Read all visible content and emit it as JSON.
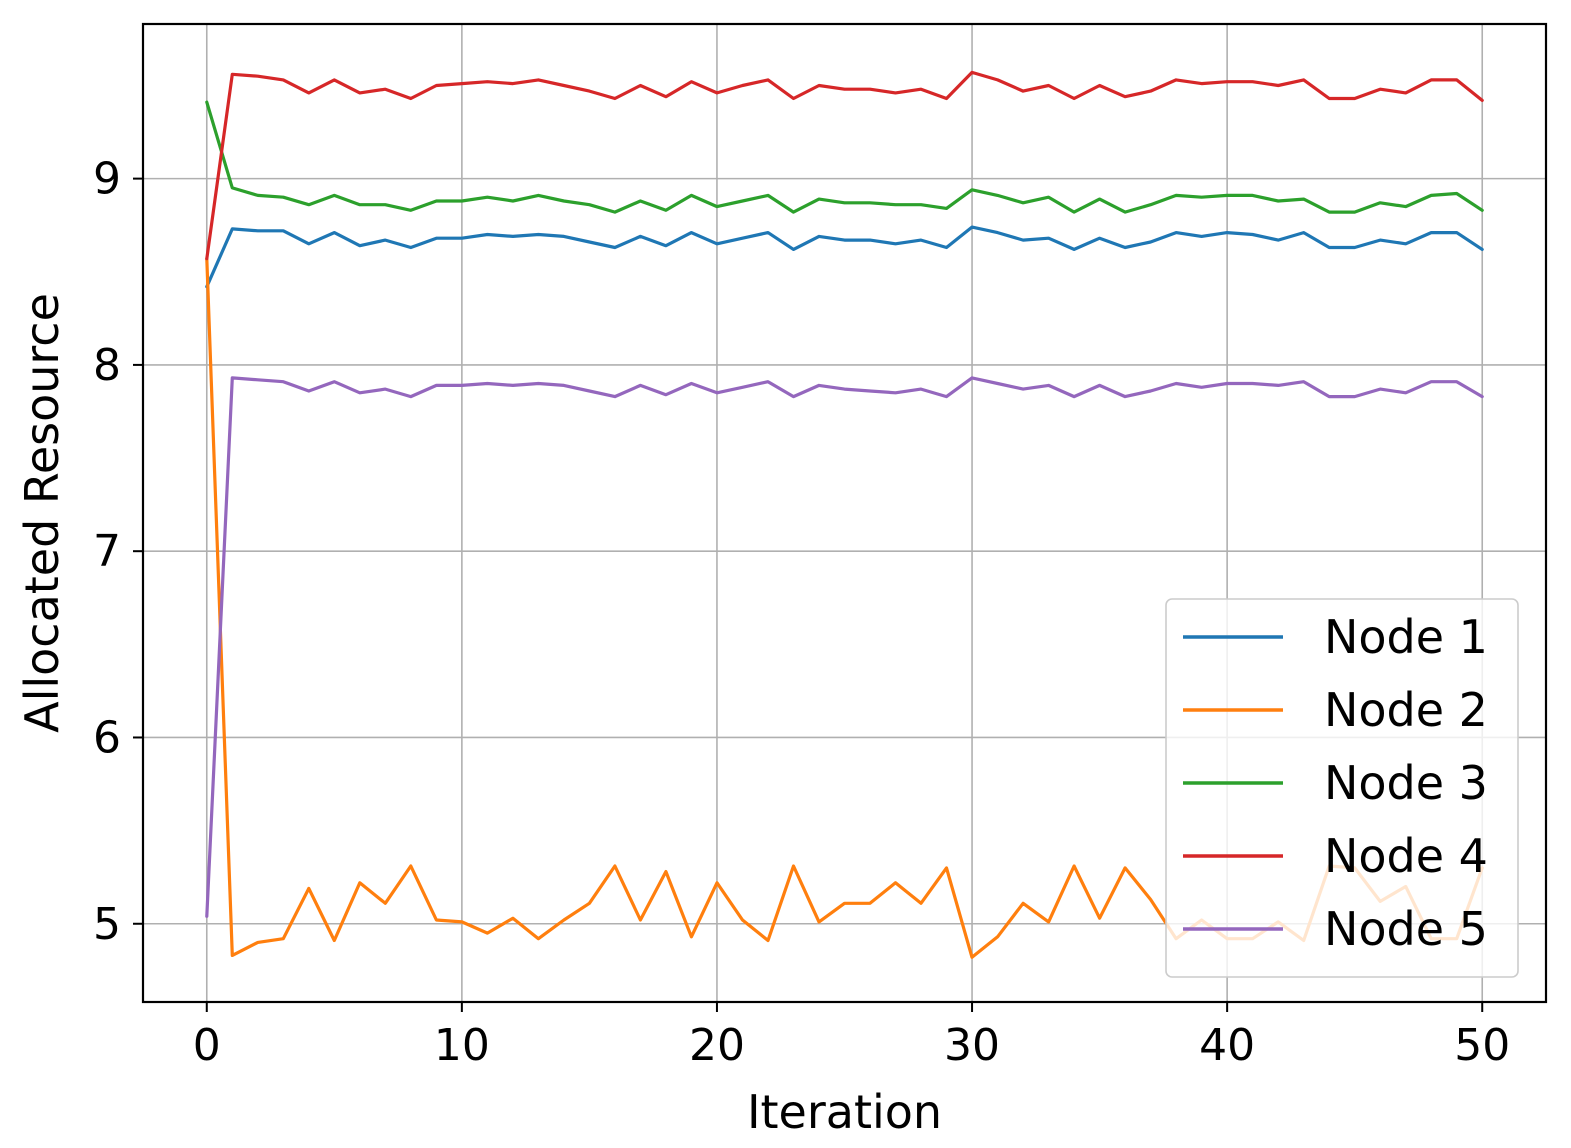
{
  "chart_data": {
    "type": "line",
    "title": "",
    "xlabel": "Iteration",
    "ylabel": "Allocated Resource",
    "xlim": [
      -2.5,
      52.5
    ],
    "ylim": [
      4.58,
      9.83
    ],
    "xticks": [
      0,
      10,
      20,
      30,
      40,
      50
    ],
    "yticks": [
      5,
      6,
      7,
      8,
      9
    ],
    "grid": true,
    "legend_position": "lower-right",
    "x": [
      0,
      1,
      2,
      3,
      4,
      5,
      6,
      7,
      8,
      9,
      10,
      11,
      12,
      13,
      14,
      15,
      16,
      17,
      18,
      19,
      20,
      21,
      22,
      23,
      24,
      25,
      26,
      27,
      28,
      29,
      30,
      31,
      32,
      33,
      34,
      35,
      36,
      37,
      38,
      39,
      40,
      41,
      42,
      43,
      44,
      45,
      46,
      47,
      48,
      49,
      50
    ],
    "series": [
      {
        "name": "Node 1",
        "color": "#1f77b4",
        "values": [
          8.42,
          8.73,
          8.72,
          8.72,
          8.65,
          8.71,
          8.64,
          8.67,
          8.63,
          8.68,
          8.68,
          8.7,
          8.69,
          8.7,
          8.69,
          8.66,
          8.63,
          8.69,
          8.64,
          8.71,
          8.65,
          8.68,
          8.71,
          8.62,
          8.69,
          8.67,
          8.67,
          8.65,
          8.67,
          8.63,
          8.74,
          8.71,
          8.67,
          8.68,
          8.62,
          8.68,
          8.63,
          8.66,
          8.71,
          8.69,
          8.71,
          8.7,
          8.67,
          8.71,
          8.63,
          8.63,
          8.67,
          8.65,
          8.71,
          8.71,
          8.62
        ]
      },
      {
        "name": "Node 2",
        "color": "#ff7f0e",
        "values": [
          8.57,
          4.83,
          4.9,
          4.92,
          5.19,
          4.91,
          5.22,
          5.11,
          5.31,
          5.02,
          5.01,
          4.95,
          5.03,
          4.92,
          5.02,
          5.11,
          5.31,
          5.02,
          5.28,
          4.93,
          5.22,
          5.02,
          4.91,
          5.31,
          5.01,
          5.11,
          5.11,
          5.22,
          5.11,
          5.3,
          4.82,
          4.93,
          5.11,
          5.01,
          5.31,
          5.03,
          5.3,
          5.13,
          4.92,
          5.02,
          4.92,
          4.92,
          5.01,
          4.91,
          5.31,
          5.3,
          5.12,
          5.2,
          4.92,
          4.92,
          5.3
        ]
      },
      {
        "name": "Node 3",
        "color": "#2ca02c",
        "values": [
          9.41,
          8.95,
          8.91,
          8.9,
          8.86,
          8.91,
          8.86,
          8.86,
          8.83,
          8.88,
          8.88,
          8.9,
          8.88,
          8.91,
          8.88,
          8.86,
          8.82,
          8.88,
          8.83,
          8.91,
          8.85,
          8.88,
          8.91,
          8.82,
          8.89,
          8.87,
          8.87,
          8.86,
          8.86,
          8.84,
          8.94,
          8.91,
          8.87,
          8.9,
          8.82,
          8.89,
          8.82,
          8.86,
          8.91,
          8.9,
          8.91,
          8.91,
          8.88,
          8.89,
          8.82,
          8.82,
          8.87,
          8.85,
          8.91,
          8.92,
          8.83
        ]
      },
      {
        "name": "Node 4",
        "color": "#d62728",
        "values": [
          8.57,
          9.56,
          9.55,
          9.53,
          9.46,
          9.53,
          9.46,
          9.48,
          9.43,
          9.5,
          9.51,
          9.52,
          9.51,
          9.53,
          9.5,
          9.47,
          9.43,
          9.5,
          9.44,
          9.52,
          9.46,
          9.5,
          9.53,
          9.43,
          9.5,
          9.48,
          9.48,
          9.46,
          9.48,
          9.43,
          9.57,
          9.53,
          9.47,
          9.5,
          9.43,
          9.5,
          9.44,
          9.47,
          9.53,
          9.51,
          9.52,
          9.52,
          9.5,
          9.53,
          9.43,
          9.43,
          9.48,
          9.46,
          9.53,
          9.53,
          9.42
        ]
      },
      {
        "name": "Node 5",
        "color": "#9467bd",
        "values": [
          5.04,
          7.93,
          7.92,
          7.91,
          7.86,
          7.91,
          7.85,
          7.87,
          7.83,
          7.89,
          7.89,
          7.9,
          7.89,
          7.9,
          7.89,
          7.86,
          7.83,
          7.89,
          7.84,
          7.9,
          7.85,
          7.88,
          7.91,
          7.83,
          7.89,
          7.87,
          7.86,
          7.85,
          7.87,
          7.83,
          7.93,
          7.9,
          7.87,
          7.89,
          7.83,
          7.89,
          7.83,
          7.86,
          7.9,
          7.88,
          7.9,
          7.9,
          7.89,
          7.91,
          7.83,
          7.83,
          7.87,
          7.85,
          7.91,
          7.91,
          7.83
        ]
      }
    ]
  }
}
